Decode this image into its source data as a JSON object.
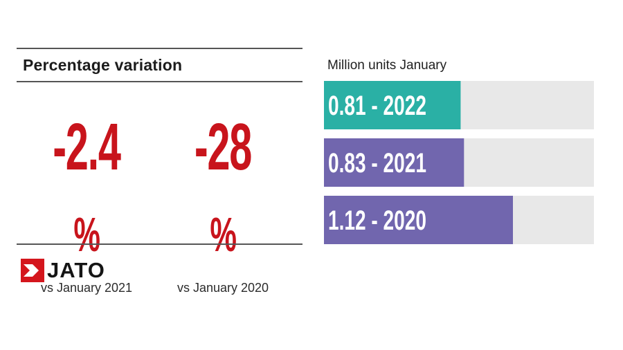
{
  "left_panel": {
    "title": "Percentage variation",
    "stats": [
      {
        "value": "-2.4",
        "unit": "%",
        "caption": "vs January 2021"
      },
      {
        "value": "-28",
        "unit": "%",
        "caption": "vs January 2020"
      }
    ]
  },
  "logo": {
    "text": "JATO"
  },
  "colors": {
    "accent_red": "#c8141c",
    "bar_2022": "#2ab0a5",
    "bar_other": "#7166ae",
    "bar_track": "#e8e8e8"
  },
  "chart_data": {
    "type": "bar",
    "orientation": "horizontal",
    "title": "Million units January",
    "categories": [
      "2022",
      "2021",
      "2020"
    ],
    "values": [
      0.81,
      0.83,
      1.12
    ],
    "labels": [
      "0.81 - 2022",
      "0.83 - 2021",
      "1.12 - 2020"
    ],
    "xlim": [
      0,
      1.6
    ],
    "grid": false
  }
}
